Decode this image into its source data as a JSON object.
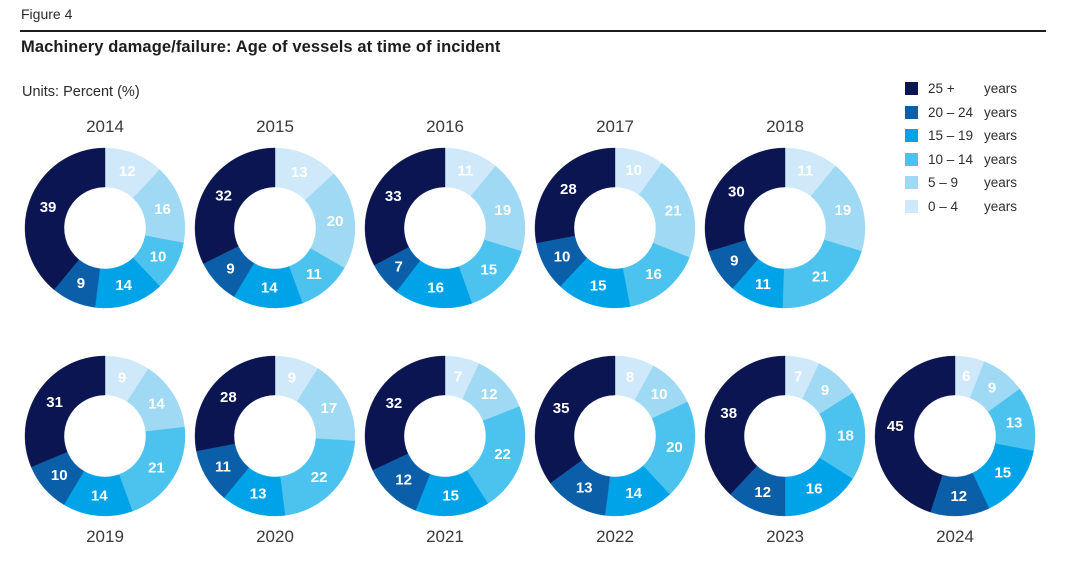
{
  "header": {
    "figure_label": "Figure 4",
    "title": "Machinery damage/failure: Age of vessels at time of incident",
    "units": "Units: Percent (%)"
  },
  "legend": {
    "position": "top-right",
    "items": [
      {
        "key": "25-plus",
        "range": "25 +",
        "unit": "years",
        "color": "#0a1551"
      },
      {
        "key": "20-24",
        "range": "20 – 24",
        "unit": "years",
        "color": "#0b5fa9"
      },
      {
        "key": "15-19",
        "range": "15 – 19",
        "unit": "years",
        "color": "#00a3e8"
      },
      {
        "key": "10-14",
        "range": "10 – 14",
        "unit": "years",
        "color": "#4cc2ee"
      },
      {
        "key": "5-9",
        "range": "5 – 9",
        "unit": "years",
        "color": "#9fd9f4"
      },
      {
        "key": "0-4",
        "range": "0 – 4",
        "unit": "years",
        "color": "#cfe9fa"
      }
    ]
  },
  "chart_data": {
    "type": "pie",
    "subtype": "donut_small_multiples",
    "title": "Machinery damage/failure: Age of vessels at time of incident",
    "units": "Percent (%)",
    "categories": [
      "0 – 4 years",
      "5 – 9 years",
      "10 – 14 years",
      "15 – 19 years",
      "20 – 24 years",
      "25 + years"
    ],
    "category_keys": [
      "0-4",
      "5-9",
      "10-14",
      "15-19",
      "20-24",
      "25-plus"
    ],
    "colors": [
      "#cfe9fa",
      "#9fd9f4",
      "#4cc2ee",
      "#00a3e8",
      "#0b5fa9",
      "#0a1551"
    ],
    "start_angle_deg": -90,
    "direction": "clockwise",
    "legend_position": "top-right",
    "rows": [
      [
        "2014",
        "2015",
        "2016",
        "2017",
        "2018"
      ],
      [
        "2019",
        "2020",
        "2021",
        "2022",
        "2023",
        "2024"
      ]
    ],
    "series": [
      {
        "name": "2014",
        "values": [
          12,
          16,
          10,
          14,
          9,
          39
        ]
      },
      {
        "name": "2015",
        "values": [
          13,
          20,
          11,
          14,
          9,
          32
        ]
      },
      {
        "name": "2016",
        "values": [
          11,
          19,
          15,
          16,
          7,
          33
        ]
      },
      {
        "name": "2017",
        "values": [
          10,
          21,
          16,
          15,
          10,
          28
        ]
      },
      {
        "name": "2018",
        "values": [
          11,
          19,
          21,
          11,
          9,
          30
        ]
      },
      {
        "name": "2019",
        "values": [
          9,
          14,
          21,
          14,
          10,
          31
        ]
      },
      {
        "name": "2020",
        "values": [
          9,
          17,
          22,
          13,
          11,
          28
        ]
      },
      {
        "name": "2021",
        "values": [
          7,
          12,
          22,
          15,
          12,
          32
        ]
      },
      {
        "name": "2022",
        "values": [
          8,
          10,
          20,
          14,
          13,
          35
        ]
      },
      {
        "name": "2023",
        "values": [
          7,
          9,
          18,
          16,
          12,
          38
        ]
      },
      {
        "name": "2024",
        "values": [
          6,
          9,
          13,
          15,
          12,
          45
        ]
      }
    ]
  },
  "colors": {
    "background": "#ffffff",
    "rule": "#1d1d1b",
    "title_text": "#1d1d1b",
    "body_text": "#2b2b2b",
    "year_text": "#3a3a3a",
    "value_label_text": "#ffffff"
  }
}
